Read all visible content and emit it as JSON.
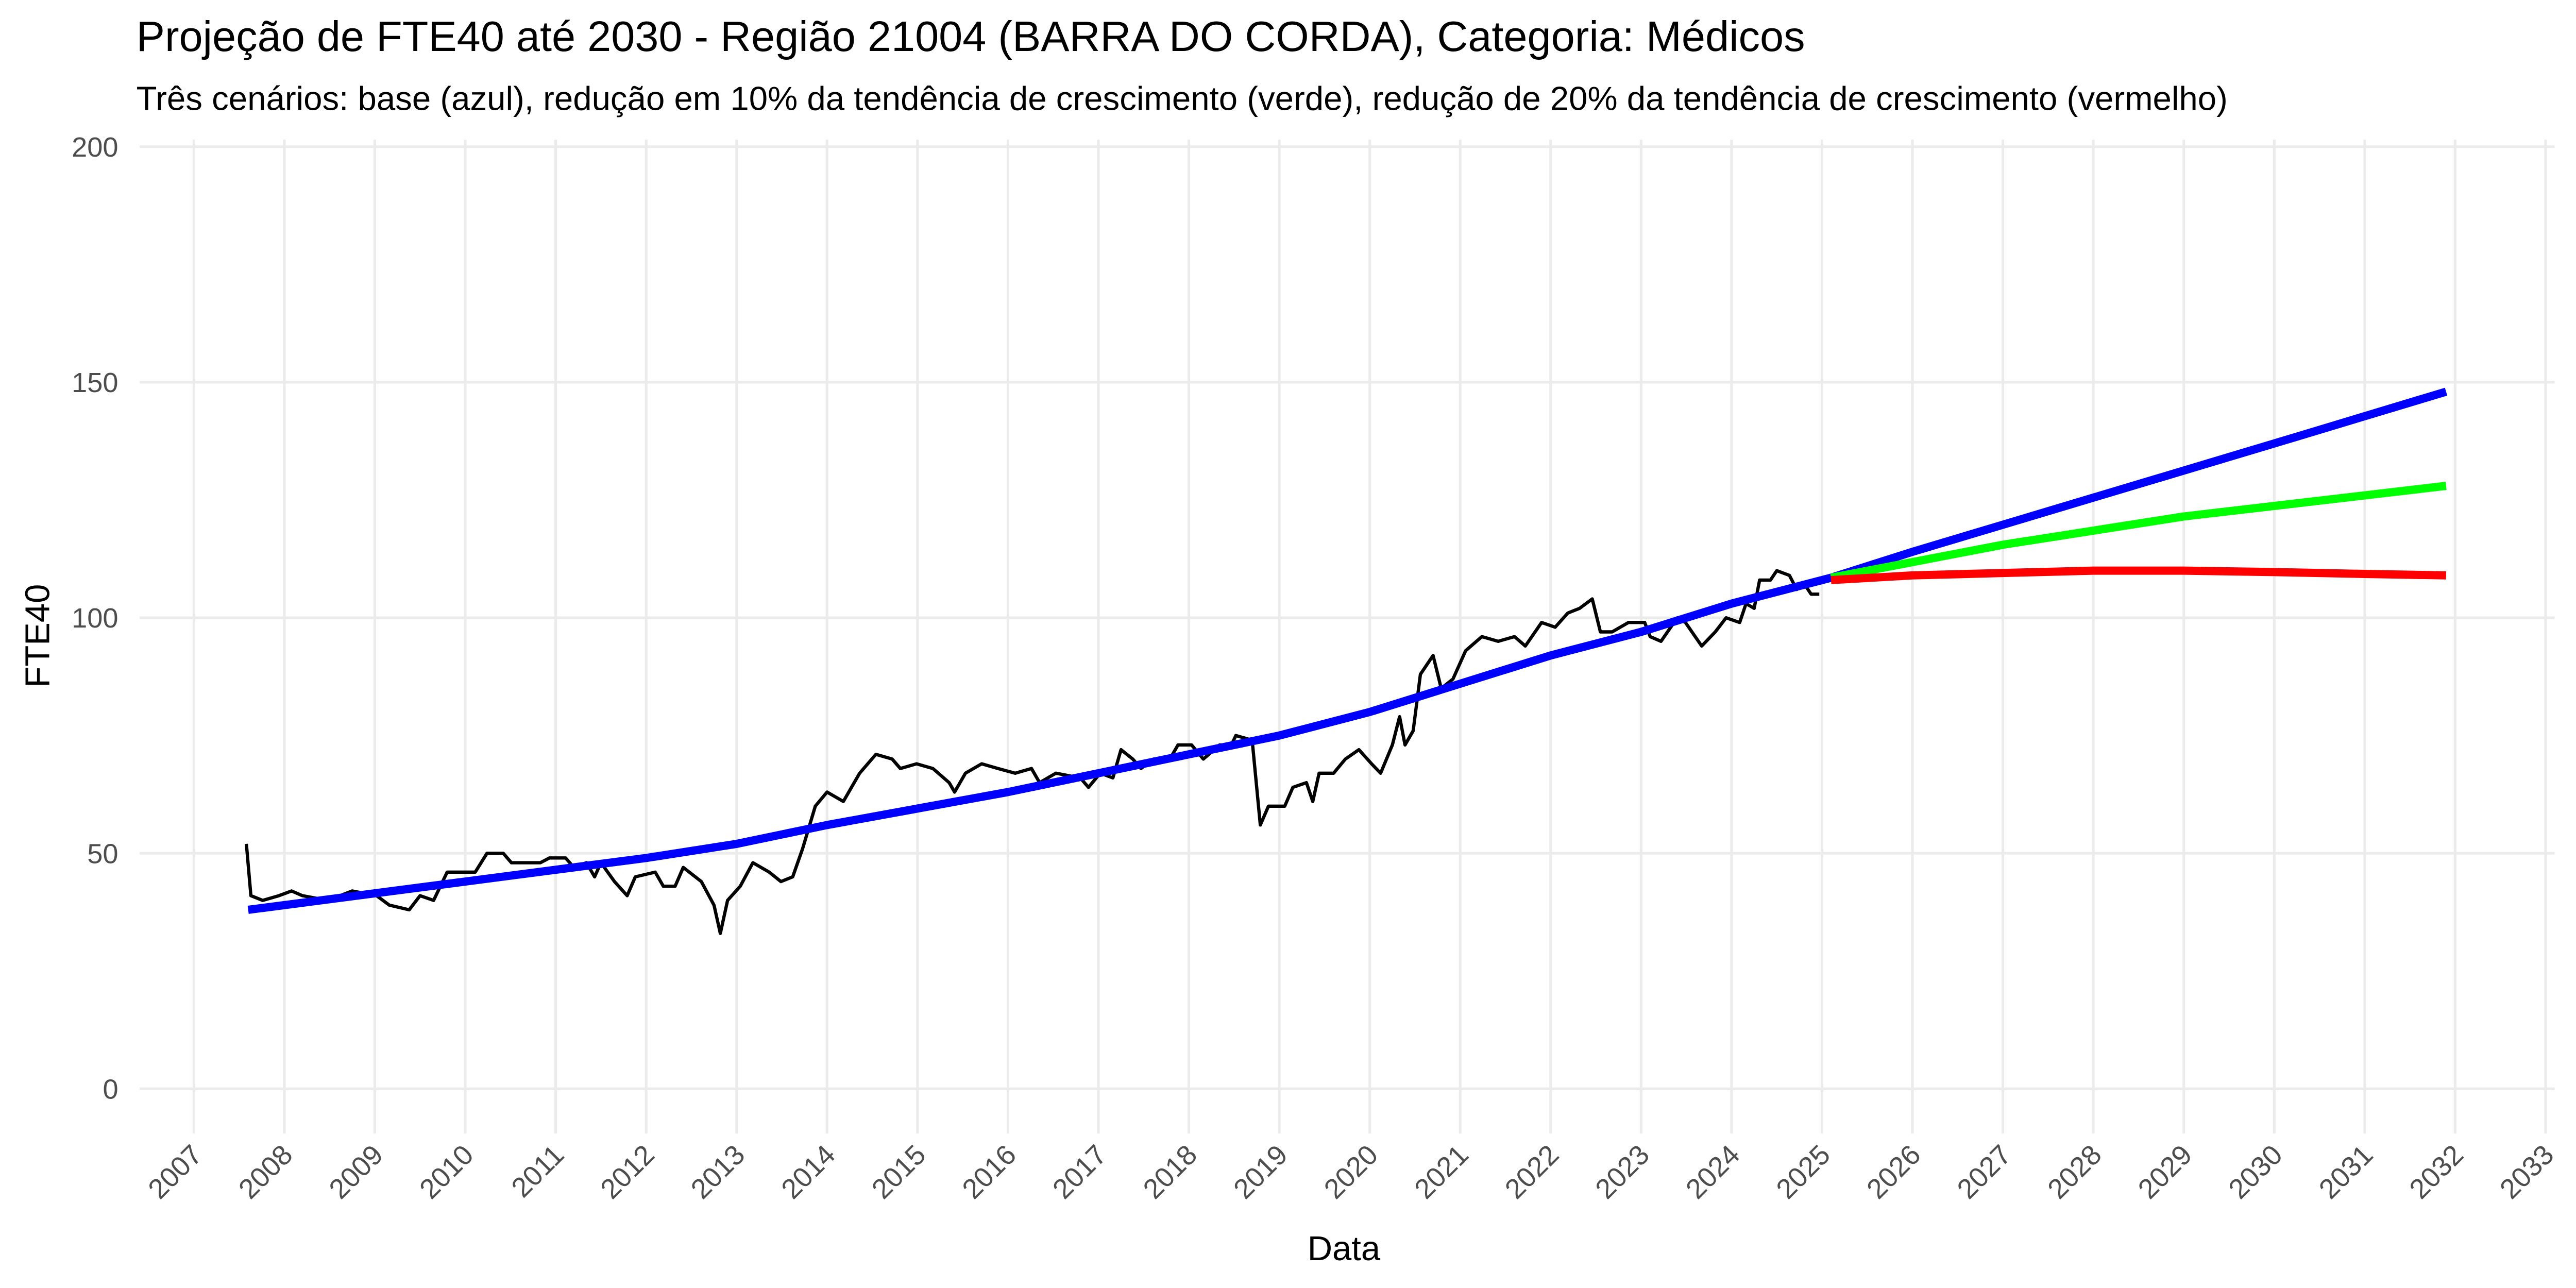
{
  "chart_data": {
    "type": "line",
    "title": "Projeção de FTE40 até 2030 - Região 21004 (BARRA DO CORDA), Categoria: Médicos",
    "subtitle": "Três cenários: base (azul), redução em 10% da tendência de crescimento (verde), redução de 20% da tendência de crescimento (vermelho)",
    "x_label": "Data",
    "y_label": "FTE40",
    "xlim": [
      2006.4,
      2033.1
    ],
    "ylim": [
      -9.5,
      201.5
    ],
    "xticks": [
      2007,
      2008,
      2009,
      2010,
      2011,
      2012,
      2013,
      2014,
      2015,
      2016,
      2017,
      2018,
      2019,
      2020,
      2021,
      2022,
      2023,
      2024,
      2025,
      2026,
      2027,
      2028,
      2029,
      2030,
      2031,
      2032,
      2033
    ],
    "yticks": [
      0,
      50,
      100,
      150,
      200
    ],
    "grid": true,
    "series": [
      {
        "color": "#000000",
        "x": [
          2007.58,
          2007.63,
          2007.76,
          2007.94,
          2008.08,
          2008.2,
          2008.48,
          2008.75,
          2009.02,
          2009.16,
          2009.38,
          2009.5,
          2009.65,
          2009.8,
          2010.11,
          2010.24,
          2010.42,
          2010.51,
          2010.83,
          2010.93,
          2011.11,
          2011.2,
          2011.34,
          2011.43,
          2011.5,
          2011.65,
          2011.79,
          2011.88,
          2012.1,
          2012.19,
          2012.32,
          2012.41,
          2012.61,
          2012.75,
          2012.82,
          2012.9,
          2013.04,
          2013.18,
          2013.36,
          2013.49,
          2013.62,
          2013.73,
          2013.87,
          2014.0,
          2014.18,
          2014.36,
          2014.54,
          2014.72,
          2014.81,
          2014.99,
          2015.17,
          2015.35,
          2015.41,
          2015.53,
          2015.71,
          2015.89,
          2016.08,
          2016.26,
          2016.35,
          2016.53,
          2016.8,
          2016.89,
          2017.02,
          2017.16,
          2017.25,
          2017.38,
          2017.47,
          2017.61,
          2017.79,
          2017.88,
          2018.03,
          2018.16,
          2018.34,
          2018.47,
          2018.52,
          2018.7,
          2018.79,
          2018.88,
          2019.06,
          2019.15,
          2019.3,
          2019.37,
          2019.44,
          2019.6,
          2019.73,
          2019.88,
          2020.02,
          2020.12,
          2020.25,
          2020.33,
          2020.39,
          2020.48,
          2020.56,
          2020.7,
          2020.79,
          2020.92,
          2021.06,
          2021.24,
          2021.42,
          2021.6,
          2021.72,
          2021.9,
          2022.05,
          2022.19,
          2022.32,
          2022.46,
          2022.55,
          2022.68,
          2022.86,
          2023.04,
          2023.1,
          2023.22,
          2023.4,
          2023.49,
          2023.67,
          2023.82,
          2023.94,
          2024.09,
          2024.16,
          2024.25,
          2024.31,
          2024.43,
          2024.5,
          2024.64,
          2024.72,
          2024.81,
          2024.88,
          2024.97
        ],
        "values": [
          52,
          41,
          40,
          41,
          42,
          41,
          40,
          42,
          41,
          39,
          38,
          41,
          40,
          46,
          46,
          50,
          50,
          48,
          48,
          49,
          49,
          47,
          48,
          45,
          48,
          44,
          41,
          45,
          46,
          43,
          43,
          47,
          44,
          39,
          33,
          40,
          43,
          48,
          46,
          44,
          45,
          51,
          60,
          63,
          61,
          67,
          71,
          70,
          68,
          69,
          68,
          65,
          63,
          67,
          69,
          68,
          67,
          68,
          65,
          67,
          66,
          64,
          67,
          66,
          72,
          70,
          68,
          70,
          70,
          73,
          73,
          70,
          73,
          73,
          75,
          74,
          56,
          60,
          60,
          64,
          65,
          61,
          67,
          67,
          70,
          72,
          69,
          67,
          73,
          79,
          73,
          76,
          88,
          92,
          85,
          87,
          93,
          96,
          95,
          96,
          94,
          99,
          98,
          101,
          102,
          104,
          97,
          97,
          99,
          99,
          96,
          95,
          100,
          99,
          94,
          97,
          100,
          99,
          103,
          102,
          108,
          108,
          110,
          109,
          106,
          107,
          105,
          105
        ]
      },
      {
        "color": "#0000ff",
        "x": [
          2007.6,
          2010,
          2012,
          2013,
          2014,
          2016,
          2018,
          2019,
          2020,
          2021,
          2022,
          2023,
          2024,
          2025.1,
          2026,
          2028,
          2030,
          2031.9
        ],
        "values": [
          38,
          44,
          49,
          52,
          56,
          63,
          71,
          75,
          80,
          86,
          92,
          97,
          103,
          108.5,
          114,
          125.5,
          137,
          148
        ]
      },
      {
        "color": "#00ff00",
        "x": [
          2025.1,
          2027,
          2029,
          2031.9
        ],
        "values": [
          108.5,
          115.5,
          121.5,
          128
        ]
      },
      {
        "color": "#ff0000",
        "x": [
          2025.1,
          2026,
          2027,
          2028,
          2029,
          2030,
          2031,
          2031.9
        ],
        "values": [
          108,
          109,
          109.5,
          110,
          110,
          109.7,
          109.3,
          109
        ]
      }
    ]
  }
}
